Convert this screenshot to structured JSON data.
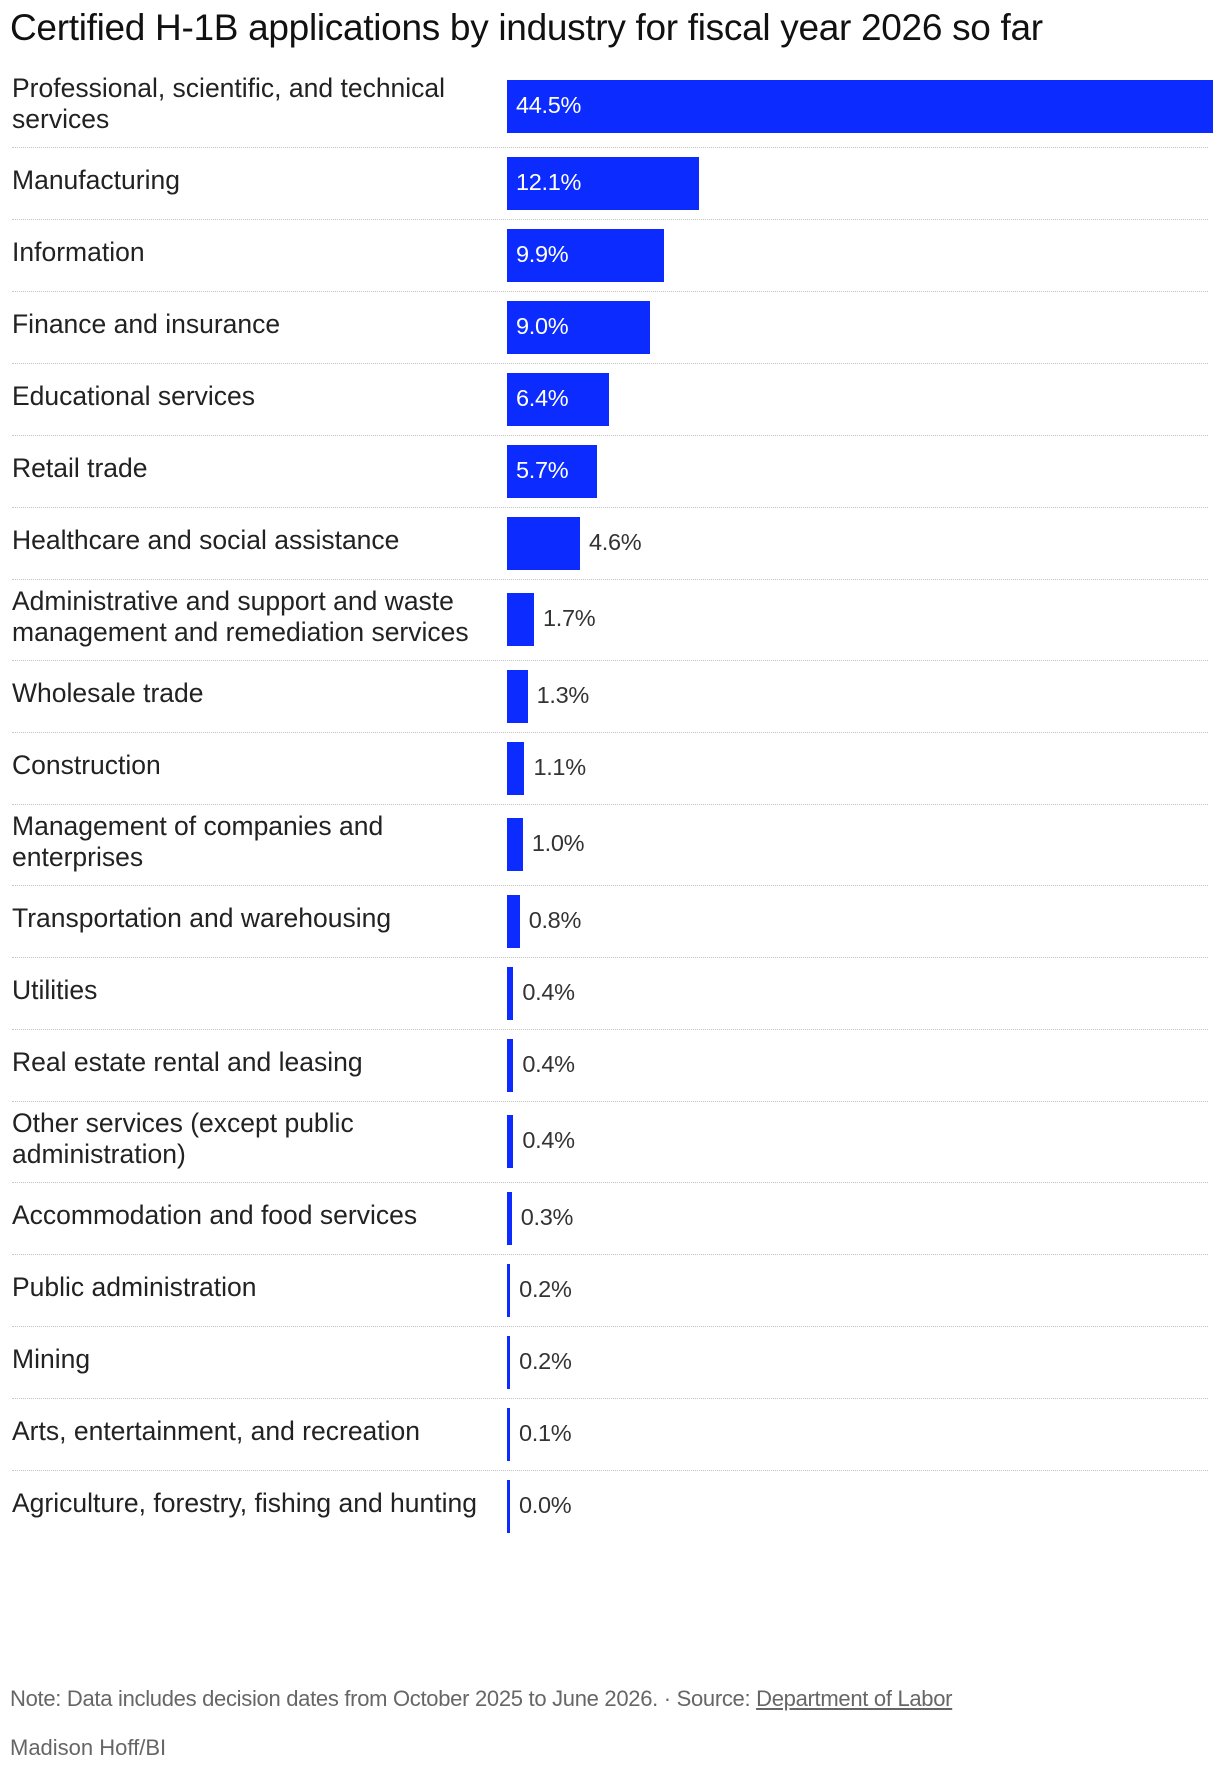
{
  "chart_data": {
    "type": "bar",
    "orientation": "horizontal",
    "title": "Certified H-1B applications by industry for fiscal year 2026 so far",
    "categories": [
      "Professional, scientific, and technical services",
      "Manufacturing",
      "Information",
      "Finance and insurance",
      "Educational services",
      "Retail trade",
      "Healthcare and social assistance",
      "Administrative and support and waste management and remediation services",
      "Wholesale trade",
      "Construction",
      "Management of companies and enterprises",
      "Transportation and warehousing",
      "Utilities",
      "Real estate rental and leasing",
      "Other services (except public administration)",
      "Accommodation and food services",
      "Public administration",
      "Mining",
      "Arts, entertainment, and recreation",
      "Agriculture, forestry, fishing and hunting"
    ],
    "values": [
      44.5,
      12.1,
      9.9,
      9.0,
      6.4,
      5.7,
      4.6,
      1.7,
      1.3,
      1.1,
      1.0,
      0.8,
      0.4,
      0.4,
      0.4,
      0.3,
      0.2,
      0.2,
      0.1,
      0.0
    ],
    "value_labels": [
      "44.5%",
      "12.1%",
      "9.9%",
      "9.0%",
      "6.4%",
      "5.7%",
      "4.6%",
      "1.7%",
      "1.3%",
      "1.1%",
      "1.0%",
      "0.8%",
      "0.4%",
      "0.4%",
      "0.4%",
      "0.3%",
      "0.2%",
      "0.2%",
      "0.1%",
      "0.0%"
    ],
    "xlim": [
      0,
      44.5
    ],
    "bar_color": "#0b2bff",
    "grid": false,
    "legend": "none"
  },
  "footer": {
    "note": "Note: Data includes decision dates from October 2025 to June 2026. · Source: ",
    "source_link": "Department of Labor",
    "credit": "Madison Hoff/BI"
  }
}
